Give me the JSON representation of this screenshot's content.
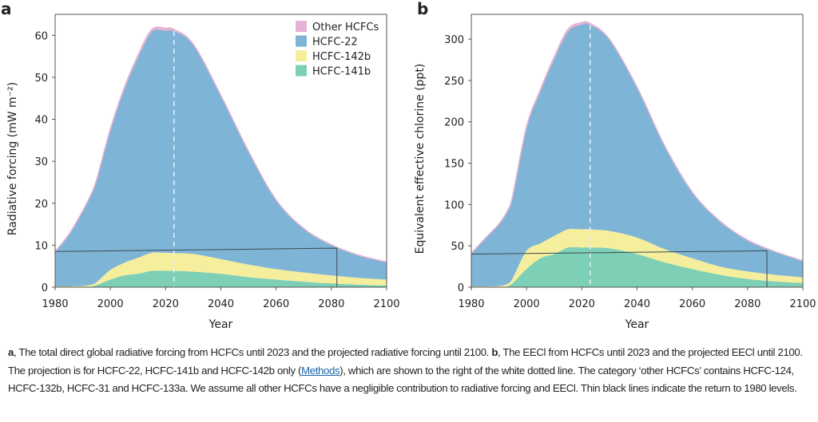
{
  "panels": [
    {
      "letter": "a"
    },
    {
      "letter": "b"
    }
  ],
  "legend": [
    {
      "label": "Other HCFCs",
      "color": "#e6b3d4"
    },
    {
      "label": "HCFC-22",
      "color": "#7eb4d6"
    },
    {
      "label": "HCFC-142b",
      "color": "#f5ee9c"
    },
    {
      "label": "HCFC-141b",
      "color": "#7dcfb5"
    }
  ],
  "chart_data": [
    {
      "type": "area",
      "stacked": true,
      "title": "",
      "xlabel": "Year",
      "ylabel": "Radiative forcing (mW m⁻²)",
      "xlim": [
        1980,
        2100
      ],
      "ylim": [
        0,
        65
      ],
      "xticks": [
        1980,
        2000,
        2020,
        2040,
        2060,
        2080,
        2100
      ],
      "yticks": [
        0,
        10,
        20,
        30,
        40,
        50,
        60
      ],
      "x": [
        1980,
        1985,
        1990,
        1993,
        1995,
        2000,
        2005,
        2010,
        2015,
        2020,
        2023,
        2030,
        2040,
        2050,
        2060,
        2070,
        2080,
        2090,
        2100
      ],
      "series": [
        {
          "name": "HCFC-141b",
          "values": [
            0,
            0,
            0,
            0.1,
            0.5,
            1.8,
            2.8,
            3.2,
            3.9,
            3.9,
            3.9,
            3.7,
            3.2,
            2.4,
            1.8,
            1.3,
            0.9,
            0.6,
            0.4
          ]
        },
        {
          "name": "HCFC-142b",
          "values": [
            0.2,
            0.2,
            0.3,
            0.5,
            0.7,
            2.3,
            3.0,
            3.8,
            4.3,
            4.3,
            4.2,
            4.2,
            3.5,
            3.0,
            2.5,
            2.2,
            1.9,
            1.6,
            1.4
          ]
        },
        {
          "name": "HCFC-22",
          "values": [
            8.3,
            12.4,
            17.9,
            21.5,
            24.4,
            33.5,
            41.5,
            48.0,
            52.8,
            53.0,
            53.0,
            50.0,
            39.0,
            27.0,
            16.5,
            10.5,
            7.3,
            5.4,
            4.2
          ]
        },
        {
          "name": "Other HCFCs",
          "values": [
            0,
            0,
            0,
            0,
            0,
            0.1,
            0.2,
            0.3,
            0.4,
            0.5,
            0.3,
            0,
            0,
            0,
            0,
            0,
            0,
            0,
            0
          ]
        }
      ],
      "projection_start": 2023,
      "return_to_1980_line": {
        "from_year": 1980,
        "to_year": 2082,
        "value_start": 8.5,
        "value_end": 9.3
      },
      "legend_position": "top-right"
    },
    {
      "type": "area",
      "stacked": true,
      "title": "",
      "xlabel": "Year",
      "ylabel": "Equivalent effective chlorine (ppt)",
      "xlim": [
        1980,
        2100
      ],
      "ylim": [
        0,
        330
      ],
      "xticks": [
        1980,
        2000,
        2020,
        2040,
        2060,
        2080,
        2100
      ],
      "yticks": [
        0,
        50,
        100,
        150,
        200,
        250,
        300
      ],
      "x": [
        1980,
        1985,
        1990,
        1993,
        1995,
        2000,
        2005,
        2010,
        2015,
        2020,
        2023,
        2030,
        2040,
        2050,
        2060,
        2070,
        2080,
        2090,
        2100
      ],
      "series": [
        {
          "name": "HCFC-141b",
          "values": [
            0,
            0,
            0,
            1,
            5,
            22,
            35,
            40,
            48,
            48,
            48,
            47,
            40,
            30,
            22,
            15,
            10,
            7,
            5
          ]
        },
        {
          "name": "HCFC-142b",
          "values": [
            1,
            1,
            1.5,
            3,
            6,
            22,
            18,
            22,
            22,
            22,
            22,
            21,
            20,
            16,
            13,
            10,
            9,
            8,
            7
          ]
        },
        {
          "name": "HCFC-22",
          "values": [
            40,
            58,
            75,
            88,
            100,
            150,
            185,
            215,
            240,
            248,
            248,
            232,
            182,
            125,
            80,
            55,
            38,
            28,
            20
          ]
        },
        {
          "name": "Other HCFCs",
          "values": [
            0,
            0,
            0,
            0,
            0,
            0.5,
            1,
            1.5,
            2,
            2,
            1,
            0,
            0,
            0,
            0,
            0,
            0,
            0,
            0
          ]
        }
      ],
      "projection_start": 2023,
      "return_to_1980_line": {
        "from_year": 1980,
        "to_year": 2087,
        "value_start": 40,
        "value_end": 44
      },
      "legend_position": "none"
    }
  ],
  "caption": {
    "part1_label": "a",
    "part1_text": ", The total direct global radiative forcing from HCFCs until 2023 and the projected radiative forcing until 2100. ",
    "part2_label": "b",
    "part2_text": ", The EECl from HCFCs until 2023 and the projected EECl until 2100. The projection is for HCFC-22, HCFC-141b and HCFC-142b only (",
    "link_text": "Methods",
    "part3_text": "), which are shown to the right of the white dotted line. The category ‘other HCFCs’ contains HCFC-124, HCFC-132b, HCFC-31 and HCFC-133a. We assume all other HCFCs have a negligible contribution to radiative forcing and EECl. Thin black lines indicate the return to 1980 levels."
  }
}
